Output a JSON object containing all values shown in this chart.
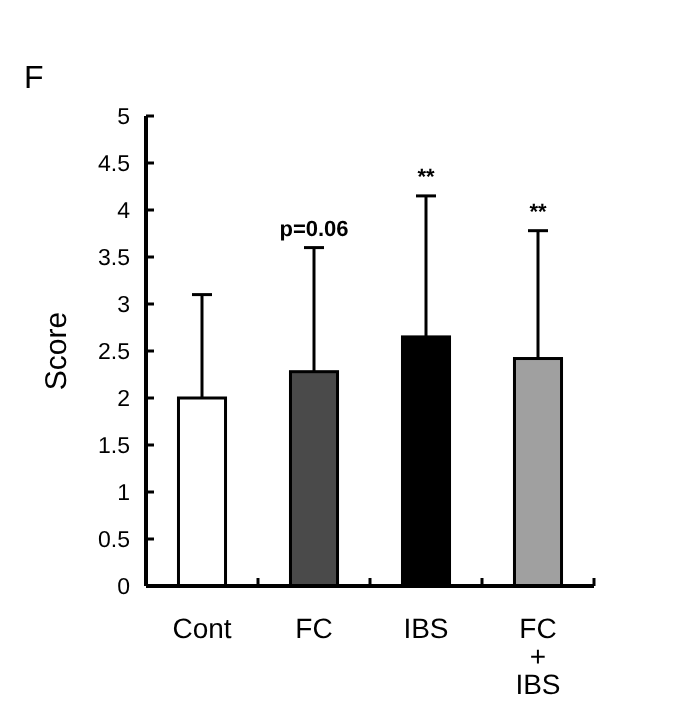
{
  "chart_data": {
    "type": "bar",
    "title": "F",
    "ylabel": "Score",
    "categories": [
      "Cont",
      "FC",
      "IBS",
      "FC\n+\nIBS"
    ],
    "values": [
      2.0,
      2.28,
      2.65,
      2.42
    ],
    "colors": [
      "#ffffff",
      "#4a4a4a",
      "#000000",
      "#a0a0a0"
    ],
    "errors": [
      [
        2.0,
        3.1
      ],
      [
        2.28,
        3.6
      ],
      [
        2.65,
        4.15
      ],
      [
        2.42,
        3.78
      ]
    ],
    "ylim": [
      0,
      5
    ],
    "yticks": [
      0,
      0.5,
      1,
      1.5,
      2,
      2.5,
      3,
      3.5,
      4,
      4.5,
      5
    ],
    "annotations": [
      {
        "text": "p=0.06",
        "x": "FC",
        "y": 3.6
      },
      {
        "text": "**",
        "x": "IBS",
        "y": 4.15
      },
      {
        "text": "**",
        "x": "FC\n+\nIBS",
        "y": 3.78
      }
    ],
    "grid": false
  }
}
